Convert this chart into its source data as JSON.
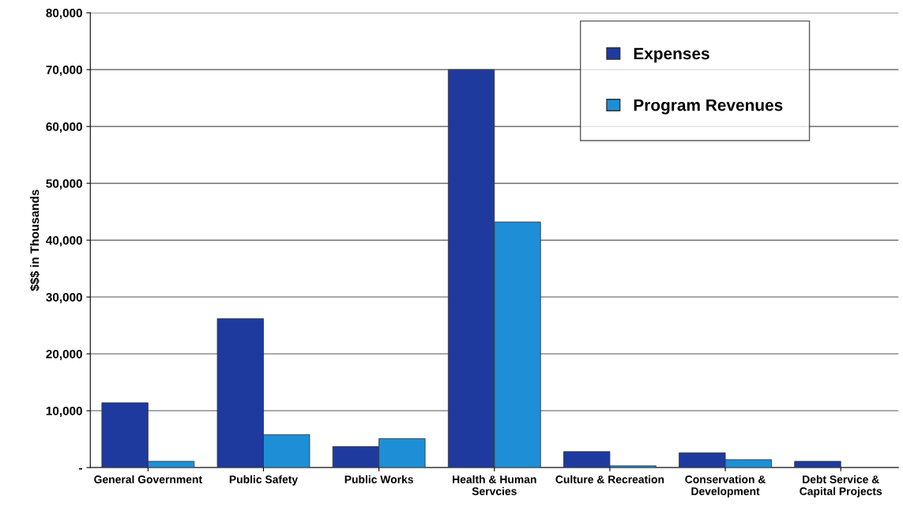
{
  "chart_data": {
    "type": "bar",
    "ylabel": "$$$ in Thousands",
    "categories": [
      "General Government",
      "Public Safety",
      "Public Works",
      "Health & Human\nServcies",
      "Culture & Recreation",
      "Conservation &\nDevelopment",
      "Debt Service &\nCapital Projects"
    ],
    "series": [
      {
        "name": "Expenses",
        "color": "#1f3a9e",
        "values": [
          11400,
          26200,
          3700,
          70000,
          2800,
          2600,
          1100
        ]
      },
      {
        "name": "Program Revenues",
        "color": "#1e8fd6",
        "values": [
          1100,
          5800,
          5100,
          43200,
          300,
          1400,
          null
        ]
      }
    ],
    "ylim": [
      0,
      80000
    ],
    "yticks": [
      {
        "value": 0,
        "label": "-"
      },
      {
        "value": 10000,
        "label": "10,000"
      },
      {
        "value": 20000,
        "label": "20,000"
      },
      {
        "value": 30000,
        "label": "30,000"
      },
      {
        "value": 40000,
        "label": "40,000"
      },
      {
        "value": 50000,
        "label": "50,000"
      },
      {
        "value": 60000,
        "label": "60,000"
      },
      {
        "value": 70000,
        "label": "70,000"
      },
      {
        "value": 80000,
        "label": "80,000"
      }
    ],
    "grid": "y",
    "legend": "top right"
  }
}
